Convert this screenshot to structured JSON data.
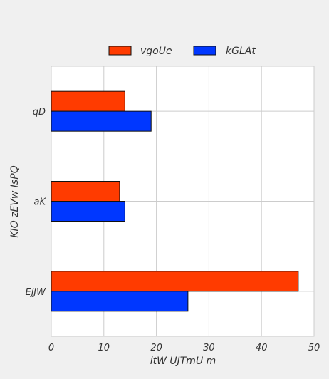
{
  "chart_data": {
    "type": "bar",
    "orientation": "horizontal",
    "categories": [
      "qD",
      "aK",
      "EjJW"
    ],
    "series": [
      {
        "name": "vgoUe",
        "color": "#ff3b00",
        "values": [
          14,
          13,
          47
        ]
      },
      {
        "name": "kGLAt",
        "color": "#0037ff",
        "values": [
          19,
          14,
          26
        ]
      }
    ],
    "xlabel": "itW UJTmU m",
    "ylabel": "KIO zEVw IsPQ",
    "xlim": [
      0,
      50
    ],
    "xticks": [
      0,
      10,
      20,
      30,
      40,
      50
    ],
    "grid": true,
    "legend_position": "top-center"
  },
  "colors": {
    "background": "#f0f0f0",
    "plot_background": "#ffffff",
    "grid": "#cccccc",
    "bar_edge": "#111111"
  }
}
